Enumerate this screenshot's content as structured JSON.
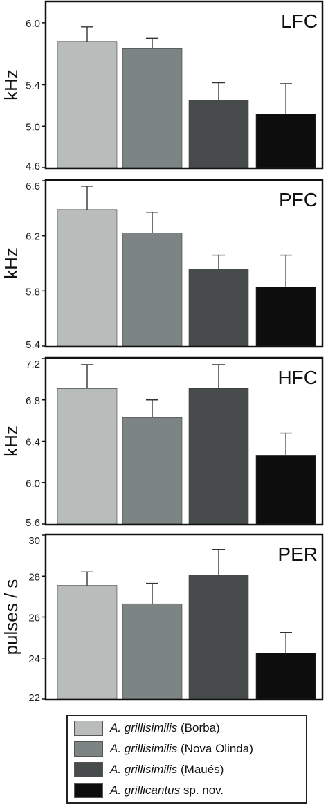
{
  "colors": [
    "#b8bdbb",
    "#7c8584",
    "#474b4c",
    "#0d0d0d"
  ],
  "legend": [
    {
      "name_italic": "A. grillisimilis",
      "name_rest": " (Borba)"
    },
    {
      "name_italic": "A. grillisimilis",
      "name_rest": " (Nova Olinda)"
    },
    {
      "name_italic": "A. grillisimilis",
      "name_rest": " (Maués)"
    },
    {
      "name_italic": "A. grillicantus",
      "name_rest": " sp. nov."
    }
  ],
  "chart_data": [
    {
      "type": "bar",
      "title": "LFC",
      "ylabel": "kHz",
      "ylim": [
        4.6,
        6.2
      ],
      "yticks": [
        4.6,
        5.0,
        5.4,
        6.0
      ],
      "ytick_labels": [
        "4.6",
        "5.0",
        "5.4",
        "6.0"
      ],
      "values": [
        5.82,
        5.75,
        5.25,
        5.12
      ],
      "errors": [
        0.14,
        0.1,
        0.17,
        0.29
      ]
    },
    {
      "type": "bar",
      "title": "PFC",
      "ylabel": "kHz",
      "ylim": [
        5.4,
        6.6
      ],
      "yticks": [
        5.4,
        5.8,
        6.2,
        6.6
      ],
      "ytick_labels": [
        "5.4",
        "5.8",
        "6.2",
        "6.6"
      ],
      "values": [
        6.39,
        6.22,
        5.96,
        5.83
      ],
      "errors": [
        0.17,
        0.15,
        0.1,
        0.23
      ]
    },
    {
      "type": "bar",
      "title": "HFC",
      "ylabel": "kHz",
      "ylim": [
        5.6,
        7.2
      ],
      "yticks": [
        5.6,
        6.0,
        6.4,
        6.8,
        7.2
      ],
      "ytick_labels": [
        "5.6",
        "6.0",
        "6.4",
        "6.8",
        "7.2"
      ],
      "values": [
        6.91,
        6.63,
        6.91,
        6.26
      ],
      "errors": [
        0.23,
        0.17,
        0.23,
        0.22
      ]
    },
    {
      "type": "bar",
      "title": "PER",
      "ylabel": "pulses / s",
      "ylim": [
        22,
        30
      ],
      "yticks": [
        22,
        24,
        26,
        28,
        30
      ],
      "ytick_labels": [
        "22",
        "24",
        "26",
        "28",
        "30"
      ],
      "values": [
        27.55,
        26.65,
        28.05,
        24.25
      ],
      "errors": [
        0.65,
        1.0,
        1.25,
        1.0
      ]
    }
  ]
}
